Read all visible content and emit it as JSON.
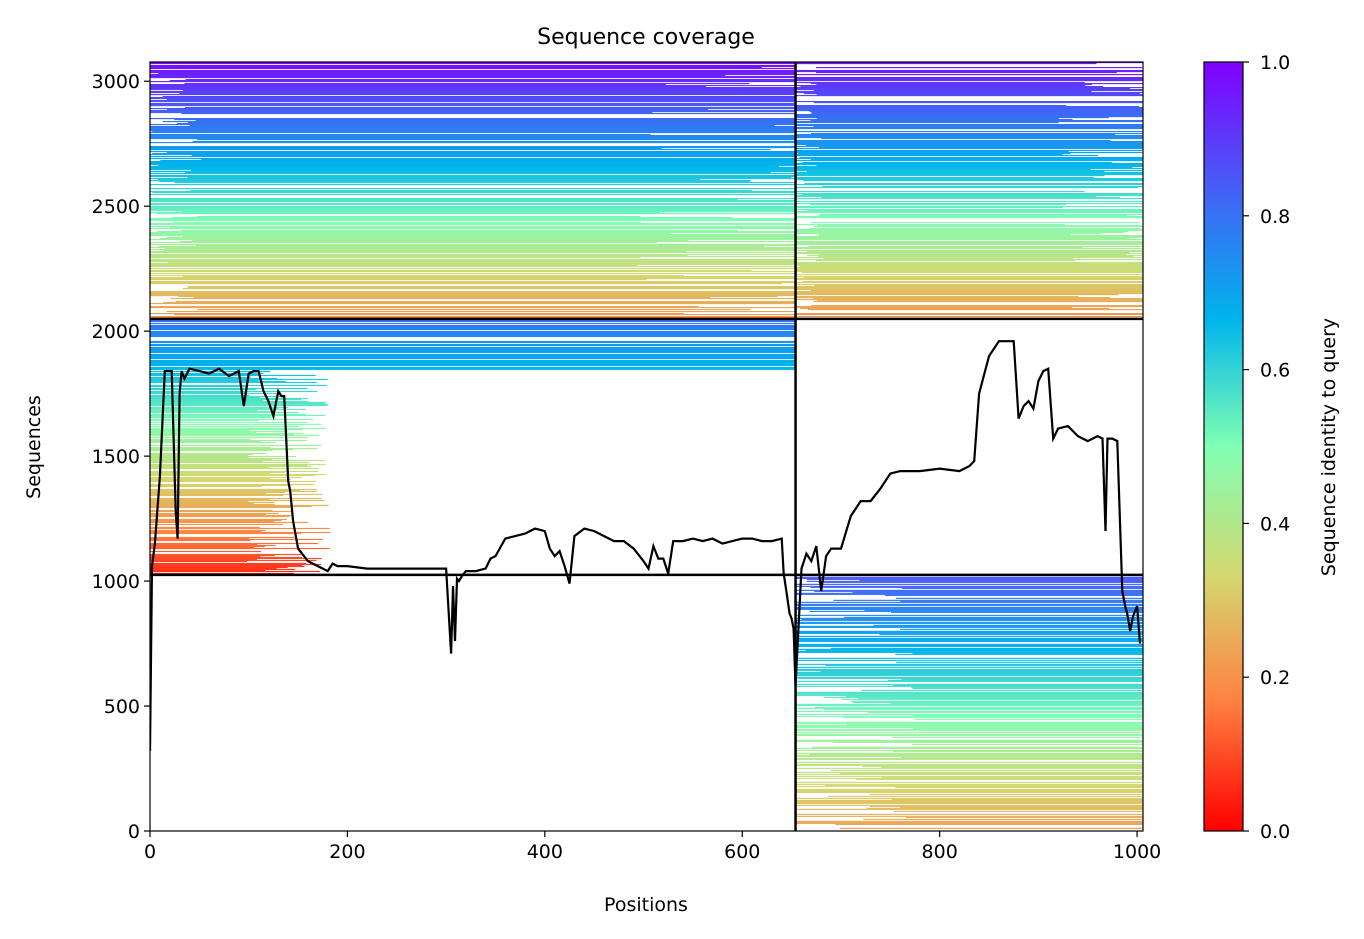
{
  "chart_data": {
    "type": "heatmap",
    "title": "Sequence coverage",
    "xlabel": "Positions",
    "ylabel": "Sequences",
    "xlim": [
      0,
      1006
    ],
    "ylim": [
      0,
      3077
    ],
    "xticks": [
      "0",
      "200",
      "400",
      "600",
      "800",
      "1000"
    ],
    "yticks": [
      "0",
      "500",
      "1000",
      "1500",
      "2000",
      "2500",
      "3000"
    ],
    "colorbar": {
      "label": "Sequence identity to query",
      "range": [
        0.0,
        1.0
      ],
      "ticks": [
        "0.0",
        "0.2",
        "0.4",
        "0.6",
        "0.8",
        "1.0"
      ],
      "colormap": [
        "#ff0000",
        "#ff8040",
        "#d4d870",
        "#80ffb4",
        "#00b4eb",
        "#4560f6",
        "#8000ff"
      ]
    },
    "domain_boundaries": {
      "x": [
        654
      ],
      "y": [
        1025,
        2049
      ]
    },
    "coverage_blocks": [
      {
        "x": [
          0,
          654
        ],
        "y": [
          2049,
          3077
        ],
        "identity_top": 0.98,
        "identity_bottom": 0.2
      },
      {
        "x": [
          654,
          1006
        ],
        "y": [
          2049,
          3077
        ],
        "identity_top": 0.97,
        "identity_bottom": 0.2
      },
      {
        "x": [
          0,
          654
        ],
        "y": [
          1025,
          2049
        ],
        "identity_top": 0.8,
        "identity_bottom": 0.05
      },
      {
        "x": [
          654,
          1006
        ],
        "y": [
          0,
          1025
        ],
        "identity_top": 0.85,
        "identity_bottom": 0.22
      }
    ],
    "coverage_line": {
      "x": [
        0,
        2,
        5,
        10,
        15,
        18,
        22,
        26,
        28,
        30,
        32,
        35,
        40,
        50,
        60,
        70,
        80,
        90,
        95,
        100,
        105,
        110,
        115,
        120,
        125,
        130,
        133,
        136,
        140,
        142,
        145,
        150,
        160,
        170,
        180,
        185,
        190,
        200,
        220,
        240,
        260,
        280,
        300,
        305,
        307,
        309,
        311,
        313,
        316,
        320,
        330,
        340,
        345,
        350,
        360,
        370,
        380,
        390,
        400,
        405,
        410,
        415,
        420,
        425,
        430,
        440,
        450,
        460,
        470,
        480,
        490,
        500,
        505,
        510,
        515,
        520,
        525,
        530,
        540,
        550,
        560,
        570,
        580,
        590,
        600,
        610,
        620,
        630,
        640,
        642,
        645,
        648,
        650,
        652,
        654,
        660,
        665,
        670,
        675,
        680,
        685,
        690,
        700,
        710,
        720,
        730,
        740,
        750,
        760,
        780,
        800,
        820,
        830,
        835,
        840,
        850,
        860,
        870,
        875,
        880,
        885,
        890,
        895,
        900,
        905,
        910,
        915,
        920,
        930,
        940,
        950,
        960,
        965,
        968,
        970,
        975,
        980,
        983,
        985,
        988,
        990,
        993,
        996,
        1000,
        1003,
        1006
      ],
      "y": [
        320,
        1060,
        1150,
        1420,
        1840,
        1840,
        1840,
        1280,
        1170,
        1750,
        1840,
        1810,
        1850,
        1840,
        1830,
        1850,
        1820,
        1840,
        1700,
        1830,
        1840,
        1840,
        1760,
        1720,
        1660,
        1760,
        1740,
        1740,
        1400,
        1360,
        1240,
        1130,
        1080,
        1060,
        1040,
        1070,
        1060,
        1060,
        1050,
        1050,
        1050,
        1050,
        1050,
        710,
        980,
        760,
        1010,
        1000,
        1020,
        1040,
        1040,
        1050,
        1090,
        1100,
        1170,
        1180,
        1190,
        1210,
        1200,
        1130,
        1100,
        1120,
        1060,
        990,
        1180,
        1210,
        1200,
        1180,
        1160,
        1160,
        1130,
        1080,
        1050,
        1140,
        1090,
        1090,
        1030,
        1160,
        1160,
        1170,
        1160,
        1170,
        1150,
        1160,
        1170,
        1170,
        1160,
        1160,
        1170,
        1030,
        950,
        870,
        850,
        810,
        580,
        1050,
        1110,
        1080,
        1140,
        960,
        1100,
        1130,
        1130,
        1260,
        1320,
        1320,
        1370,
        1430,
        1440,
        1440,
        1450,
        1440,
        1460,
        1480,
        1750,
        1900,
        1960,
        1960,
        1960,
        1650,
        1700,
        1720,
        1690,
        1800,
        1840,
        1850,
        1570,
        1610,
        1620,
        1580,
        1560,
        1580,
        1570,
        1200,
        1570,
        1570,
        1560,
        1200,
        960,
        900,
        870,
        800,
        860,
        900,
        750
      ]
    }
  }
}
